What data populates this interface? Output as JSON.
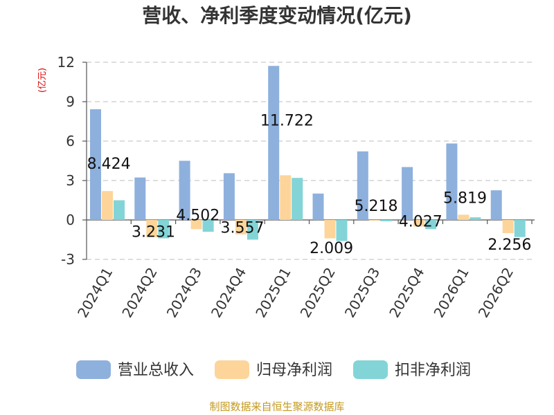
{
  "chart_data": {
    "type": "bar",
    "title": "营收、净利季度变动情况(亿元)",
    "unit_label": "(亿元)",
    "xlabel": "",
    "ylabel": "",
    "categories": [
      "2024Q1",
      "2024Q2",
      "2024Q3",
      "2024Q4",
      "2025Q1",
      "2025Q2",
      "2025Q3",
      "2025Q4",
      "2026Q1",
      "2026Q2"
    ],
    "y_ticks": [
      12,
      9,
      6,
      3,
      0,
      -3
    ],
    "ylim": [
      -3,
      12
    ],
    "grid": true,
    "legend_position": "bottom",
    "series": [
      {
        "name": "营业总收入",
        "color": "#8eb0dd",
        "values": [
          8.424,
          3.231,
          4.502,
          3.557,
          11.722,
          2.009,
          5.218,
          4.027,
          5.819,
          2.256
        ],
        "labels": [
          "8.424",
          "3.231",
          "4.502",
          "3.557",
          "11.722",
          "2.009",
          "5.218",
          "4.027",
          "5.819",
          "2.256"
        ]
      },
      {
        "name": "归母净利润",
        "color": "#fdd59a",
        "values": [
          2.2,
          -1.3,
          -0.7,
          -1.1,
          3.4,
          -1.4,
          0.0,
          -0.5,
          0.4,
          -1.0
        ]
      },
      {
        "name": "扣非净利润",
        "color": "#83d4d7",
        "values": [
          1.5,
          -1.4,
          -0.9,
          -1.5,
          3.2,
          -1.6,
          -0.1,
          -0.7,
          0.2,
          -1.3
        ]
      }
    ]
  },
  "footer": {
    "source": "制图数据来自恒生聚源数据库"
  }
}
